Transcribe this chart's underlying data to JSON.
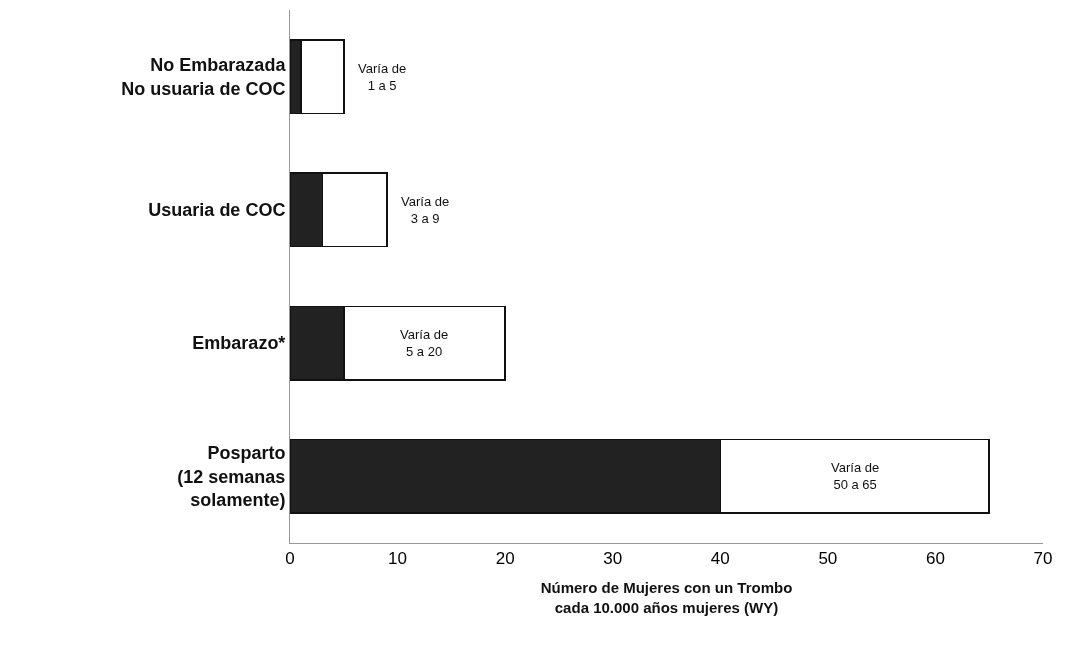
{
  "chart_data": {
    "type": "bar",
    "orientation": "horizontal",
    "stacked": true,
    "categories": [
      "No Embarazada\nNo usuaria de COC",
      "Usuaria de COC",
      "Embarazo*",
      "Posparto\n(12 semanas\nsolamente)"
    ],
    "series": [
      {
        "color": "#222222",
        "values": [
          1,
          3,
          5,
          40
        ]
      },
      {
        "color": "#ffffff",
        "values": [
          4,
          6,
          15,
          25
        ]
      }
    ],
    "xlabel": "Número de Mujeres con un Trombo\ncada 10.000 años mujeres (WY)",
    "xlim": [
      0,
      70
    ],
    "xticks": [
      0,
      10,
      20,
      30,
      40,
      50,
      60,
      70
    ],
    "annotations": [
      "Varía de\n1 a 5",
      "Varía de\n3 a 9",
      "Varía de\n5 a 20",
      "Varía de\n50 a 65"
    ],
    "legend": false
  }
}
